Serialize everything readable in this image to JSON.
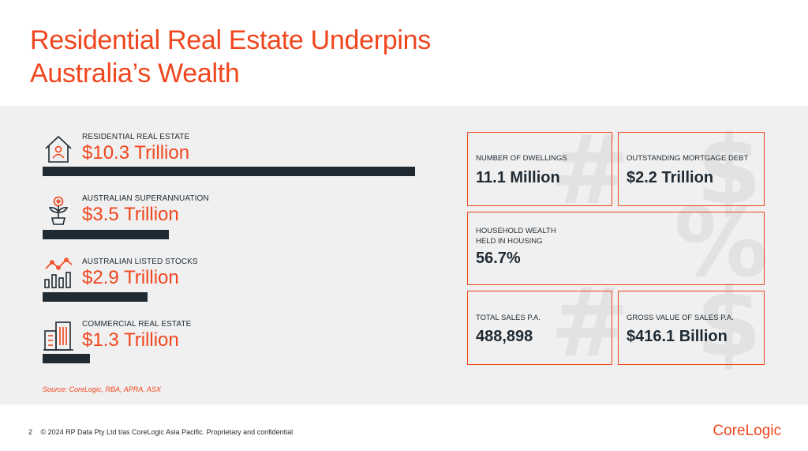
{
  "title_line1": "Residential Real Estate Underpins",
  "title_line2": "Australia’s Wealth",
  "metrics": [
    {
      "label": "RESIDENTIAL REAL ESTATE",
      "value": "$10.3 Trillion",
      "icon": "house-person-icon",
      "amount": 10.3
    },
    {
      "label": "AUSTRALIAN SUPERANNUATION",
      "value": "$3.5 Trillion",
      "icon": "plant-coin-icon",
      "amount": 3.5
    },
    {
      "label": "AUSTRALIAN LISTED STOCKS",
      "value": "$2.9 Trillion",
      "icon": "stock-chart-icon",
      "amount": 2.9
    },
    {
      "label": "COMMERCIAL REAL ESTATE",
      "value": "$1.3 Trillion",
      "icon": "office-building-icon",
      "amount": 1.3
    }
  ],
  "source": "Source: CoreLogic, RBA, APRA, ASX",
  "stats": [
    {
      "label": "NUMBER OF DWELLINGS",
      "value": "11.1 Million"
    },
    {
      "label": "OUTSTANDING MORTGAGE DEBT",
      "value": "$2.2 Trillion"
    },
    {
      "label": "HOUSEHOLD WEALTH\nHELD IN HOUSING",
      "value": "56.7%"
    },
    {
      "label": "TOTAL SALES P.A.",
      "value": "488,898"
    },
    {
      "label": "GROSS VALUE OF SALES P.A.",
      "value": "$416.1 Billion"
    }
  ],
  "footer": {
    "page": "2",
    "copyright": "© 2024 RP Data Pty Ltd t/as CoreLogic Asia Pacific. Proprietary and confidential"
  },
  "logo": "CoreLogic",
  "colors": {
    "accent": "#f0461e",
    "dark": "#1f2a33",
    "panel": "#f0f0f0"
  }
}
